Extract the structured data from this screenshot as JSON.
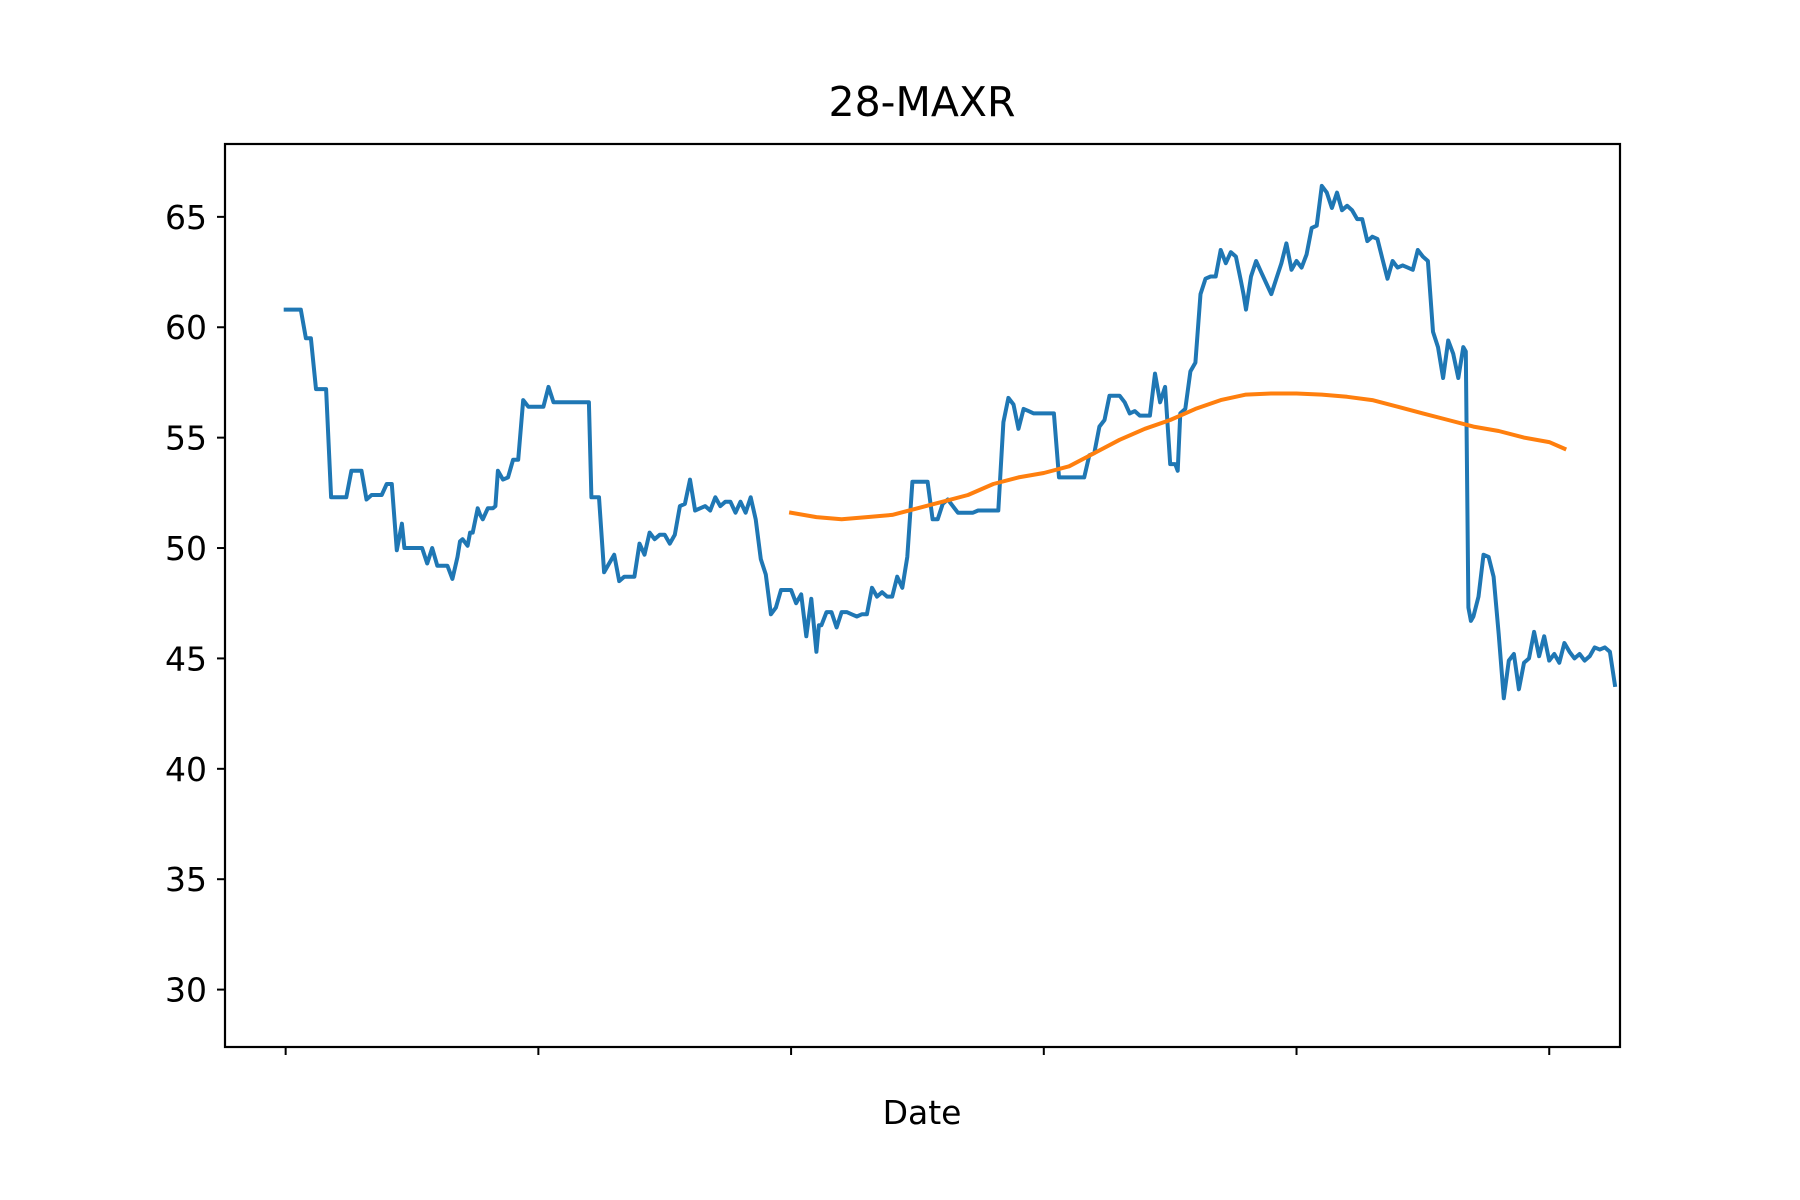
{
  "chart_data": {
    "type": "line",
    "title": "28-MAXR",
    "xlabel": "Date",
    "ylabel": "",
    "ylim": [
      27.4,
      68.3
    ],
    "xlim": [
      -12,
      264
    ],
    "yticks": [
      30,
      35,
      40,
      45,
      50,
      55,
      60,
      65
    ],
    "xticks": [
      0,
      50,
      100,
      150,
      200,
      250
    ],
    "xtick_labels": [
      "",
      "",
      "",
      "",
      "",
      ""
    ],
    "grid": false,
    "legend": "none",
    "colors": {
      "price": "#1f77b4",
      "moving_average": "#ff7f0e"
    },
    "series": [
      {
        "key": "price",
        "points": [
          [
            0,
            60.8
          ],
          [
            2,
            60.8
          ],
          [
            3,
            60.8
          ],
          [
            4,
            59.5
          ],
          [
            5,
            59.5
          ],
          [
            6,
            57.2
          ],
          [
            7,
            57.2
          ],
          [
            8,
            57.2
          ],
          [
            9,
            52.3
          ],
          [
            10,
            52.3
          ],
          [
            11,
            52.3
          ],
          [
            12,
            52.3
          ],
          [
            13,
            53.5
          ],
          [
            14,
            53.5
          ],
          [
            15,
            53.5
          ],
          [
            16,
            52.2
          ],
          [
            17,
            52.4
          ],
          [
            18,
            52.4
          ],
          [
            19,
            52.4
          ],
          [
            20,
            52.9
          ],
          [
            21,
            52.9
          ],
          [
            22,
            49.9
          ],
          [
            23,
            51.1
          ],
          [
            23.5,
            50
          ],
          [
            24,
            50
          ],
          [
            25,
            50
          ],
          [
            26,
            50
          ],
          [
            27,
            50
          ],
          [
            28,
            49.3
          ],
          [
            29,
            50
          ],
          [
            30,
            49.2
          ],
          [
            31,
            49.2
          ],
          [
            32,
            49.2
          ],
          [
            33,
            48.6
          ],
          [
            34,
            49.6
          ],
          [
            34.5,
            50.3
          ],
          [
            35,
            50.4
          ],
          [
            36,
            50.1
          ],
          [
            36.5,
            50.7
          ],
          [
            37,
            50.7
          ],
          [
            38,
            51.8
          ],
          [
            38.5,
            51.5
          ],
          [
            39,
            51.3
          ],
          [
            40,
            51.8
          ],
          [
            41,
            51.8
          ],
          [
            41.5,
            51.9
          ],
          [
            42,
            53.5
          ],
          [
            43,
            53.1
          ],
          [
            44,
            53.2
          ],
          [
            45,
            54
          ],
          [
            46,
            54
          ],
          [
            47,
            56.7
          ],
          [
            48,
            56.4
          ],
          [
            49,
            56.4
          ],
          [
            50,
            56.4
          ],
          [
            51,
            56.4
          ],
          [
            52,
            57.3
          ],
          [
            53,
            56.6
          ],
          [
            54,
            56.6
          ],
          [
            55,
            56.6
          ],
          [
            56,
            56.6
          ],
          [
            57,
            56.6
          ],
          [
            58,
            56.6
          ],
          [
            59,
            56.6
          ],
          [
            60,
            56.6
          ],
          [
            60.5,
            52.3
          ],
          [
            61,
            52.3
          ],
          [
            62,
            52.3
          ],
          [
            63,
            48.9
          ],
          [
            64,
            49.3
          ],
          [
            65,
            49.7
          ],
          [
            66,
            48.5
          ],
          [
            67,
            48.7
          ],
          [
            68,
            48.7
          ],
          [
            69,
            48.7
          ],
          [
            70,
            50.2
          ],
          [
            71,
            49.7
          ],
          [
            72,
            50.7
          ],
          [
            73,
            50.4
          ],
          [
            74,
            50.6
          ],
          [
            75,
            50.6
          ],
          [
            76,
            50.2
          ],
          [
            77,
            50.6
          ],
          [
            78,
            51.9
          ],
          [
            79,
            52
          ],
          [
            80,
            53.1
          ],
          [
            81,
            51.7
          ],
          [
            82,
            51.8
          ],
          [
            83,
            51.9
          ],
          [
            84,
            51.7
          ],
          [
            85,
            52.3
          ],
          [
            86,
            51.9
          ],
          [
            87,
            52.1
          ],
          [
            88,
            52.1
          ],
          [
            89,
            51.6
          ],
          [
            90,
            52.1
          ],
          [
            91,
            51.6
          ],
          [
            92,
            52.3
          ],
          [
            93,
            51.3
          ],
          [
            94,
            49.5
          ],
          [
            95,
            48.8
          ],
          [
            96,
            47.0
          ],
          [
            97,
            47.3
          ],
          [
            98,
            48.1
          ],
          [
            99,
            48.1
          ],
          [
            100,
            48.1
          ],
          [
            101,
            47.5
          ],
          [
            102,
            47.9
          ],
          [
            103,
            46.0
          ],
          [
            104,
            47.7
          ],
          [
            105,
            45.3
          ],
          [
            105.5,
            46.5
          ],
          [
            106,
            46.5
          ],
          [
            107,
            47.1
          ],
          [
            108,
            47.1
          ],
          [
            109,
            46.4
          ],
          [
            110,
            47.1
          ],
          [
            111,
            47.1
          ],
          [
            112,
            47
          ],
          [
            113,
            46.9
          ],
          [
            114,
            47.0
          ],
          [
            115,
            47.0
          ],
          [
            116,
            48.2
          ],
          [
            117,
            47.8
          ],
          [
            118,
            48.0
          ],
          [
            119,
            47.8
          ],
          [
            120,
            47.8
          ],
          [
            121,
            48.7
          ],
          [
            122,
            48.2
          ],
          [
            123,
            49.6
          ],
          [
            124,
            53
          ],
          [
            125,
            53
          ],
          [
            126,
            53
          ],
          [
            127,
            53
          ],
          [
            128,
            51.3
          ],
          [
            129,
            51.3
          ],
          [
            130,
            52
          ],
          [
            131,
            52.2
          ],
          [
            132,
            51.9
          ],
          [
            133,
            51.6
          ],
          [
            134,
            51.6
          ],
          [
            135,
            51.6
          ],
          [
            136,
            51.6
          ],
          [
            137,
            51.7
          ],
          [
            138,
            51.7
          ],
          [
            139,
            51.7
          ],
          [
            140,
            51.7
          ],
          [
            141,
            51.7
          ],
          [
            142,
            55.7
          ],
          [
            143,
            56.8
          ],
          [
            144,
            56.5
          ],
          [
            145,
            55.4
          ],
          [
            146,
            56.3
          ],
          [
            147,
            56.2
          ],
          [
            148,
            56.1
          ],
          [
            149,
            56.1
          ],
          [
            150,
            56.1
          ],
          [
            151,
            56.1
          ],
          [
            152,
            56.1
          ],
          [
            153,
            53.2
          ],
          [
            154,
            53.2
          ],
          [
            155,
            53.2
          ],
          [
            156,
            53.2
          ],
          [
            157,
            53.2
          ],
          [
            158,
            53.2
          ],
          [
            159,
            54.2
          ],
          [
            160,
            54.3
          ],
          [
            161,
            55.5
          ],
          [
            162,
            55.8
          ],
          [
            163,
            56.9
          ],
          [
            164,
            56.9
          ],
          [
            165,
            56.9
          ],
          [
            166,
            56.6
          ],
          [
            167,
            56.1
          ],
          [
            168,
            56.2
          ],
          [
            169,
            56
          ],
          [
            170,
            56
          ],
          [
            171,
            56
          ],
          [
            172,
            57.9
          ],
          [
            173,
            56.6
          ],
          [
            174,
            57.3
          ],
          [
            175,
            53.8
          ],
          [
            176,
            53.8
          ],
          [
            176.5,
            53.5
          ],
          [
            177,
            56.1
          ],
          [
            178,
            56.3
          ],
          [
            179,
            58
          ],
          [
            180,
            58.4
          ],
          [
            181,
            61.5
          ],
          [
            182,
            62.2
          ],
          [
            183,
            62.3
          ],
          [
            184,
            62.3
          ],
          [
            185,
            63.5
          ],
          [
            186,
            62.9
          ],
          [
            187,
            63.4
          ],
          [
            188,
            63.2
          ],
          [
            189,
            62.1
          ],
          [
            189.5,
            61.5
          ],
          [
            190,
            60.8
          ],
          [
            191,
            62.3
          ],
          [
            192,
            63.0
          ],
          [
            193,
            62.5
          ],
          [
            194,
            62.0
          ],
          [
            195,
            61.5
          ],
          [
            196,
            62.2
          ],
          [
            197,
            62.9
          ],
          [
            198,
            63.8
          ],
          [
            199,
            62.6
          ],
          [
            200,
            63.0
          ],
          [
            201,
            62.7
          ],
          [
            202,
            63.3
          ],
          [
            203,
            64.5
          ],
          [
            204,
            64.6
          ],
          [
            205,
            66.4
          ],
          [
            206,
            66.1
          ],
          [
            207,
            65.4
          ],
          [
            208,
            66.1
          ],
          [
            209,
            65.3
          ],
          [
            210,
            65.5
          ],
          [
            211,
            65.3
          ],
          [
            212,
            64.9
          ],
          [
            213,
            64.9
          ],
          [
            214,
            63.9
          ],
          [
            215,
            64.1
          ],
          [
            216,
            64.0
          ],
          [
            217,
            63.1
          ],
          [
            218,
            62.2
          ],
          [
            219,
            63.0
          ],
          [
            220,
            62.7
          ],
          [
            221,
            62.8
          ],
          [
            222,
            62.7
          ],
          [
            223,
            62.6
          ],
          [
            224,
            63.5
          ],
          [
            225,
            63.2
          ],
          [
            226,
            63.0
          ],
          [
            227,
            59.8
          ],
          [
            228,
            59.1
          ],
          [
            229,
            57.7
          ],
          [
            230,
            59.4
          ],
          [
            231,
            58.8
          ],
          [
            232,
            57.7
          ],
          [
            233,
            59.1
          ],
          [
            233.5,
            58.9
          ],
          [
            234,
            47.3
          ],
          [
            234.5,
            46.7
          ],
          [
            235,
            46.9
          ],
          [
            236,
            47.8
          ],
          [
            237,
            49.7
          ],
          [
            238,
            49.6
          ],
          [
            239,
            48.7
          ],
          [
            240,
            46.1
          ],
          [
            241,
            43.2
          ],
          [
            242,
            44.9
          ],
          [
            243,
            45.2
          ],
          [
            244,
            43.6
          ],
          [
            245,
            44.8
          ],
          [
            246,
            45.0
          ],
          [
            247,
            46.2
          ],
          [
            248,
            45.1
          ],
          [
            249,
            46.0
          ],
          [
            250,
            44.9
          ],
          [
            251,
            45.2
          ],
          [
            252,
            44.8
          ],
          [
            253,
            45.7
          ],
          [
            254,
            45.3
          ],
          [
            255,
            45.0
          ],
          [
            256,
            45.2
          ],
          [
            257,
            44.9
          ],
          [
            258,
            45.1
          ],
          [
            259,
            45.5
          ],
          [
            260,
            45.4
          ],
          [
            261,
            45.5
          ],
          [
            262,
            45.3
          ],
          [
            263,
            43.8
          ]
        ]
      },
      {
        "key": "moving_average",
        "points": [
          [
            100,
            51.6
          ],
          [
            105,
            51.4
          ],
          [
            110,
            51.3
          ],
          [
            115,
            51.4
          ],
          [
            120,
            51.5
          ],
          [
            125,
            51.8
          ],
          [
            130,
            52.1
          ],
          [
            135,
            52.4
          ],
          [
            140,
            52.9
          ],
          [
            145,
            53.2
          ],
          [
            150,
            53.4
          ],
          [
            155,
            53.7
          ],
          [
            160,
            54.3
          ],
          [
            165,
            54.9
          ],
          [
            170,
            55.4
          ],
          [
            175,
            55.8
          ],
          [
            180,
            56.3
          ],
          [
            185,
            56.7
          ],
          [
            190,
            56.95
          ],
          [
            195,
            57.0
          ],
          [
            200,
            57.0
          ],
          [
            205,
            56.95
          ],
          [
            210,
            56.85
          ],
          [
            215,
            56.7
          ],
          [
            220,
            56.4
          ],
          [
            225,
            56.1
          ],
          [
            230,
            55.8
          ],
          [
            235,
            55.5
          ],
          [
            240,
            55.3
          ],
          [
            245,
            55.0
          ],
          [
            250,
            54.8
          ],
          [
            253,
            54.5
          ]
        ]
      }
    ]
  }
}
